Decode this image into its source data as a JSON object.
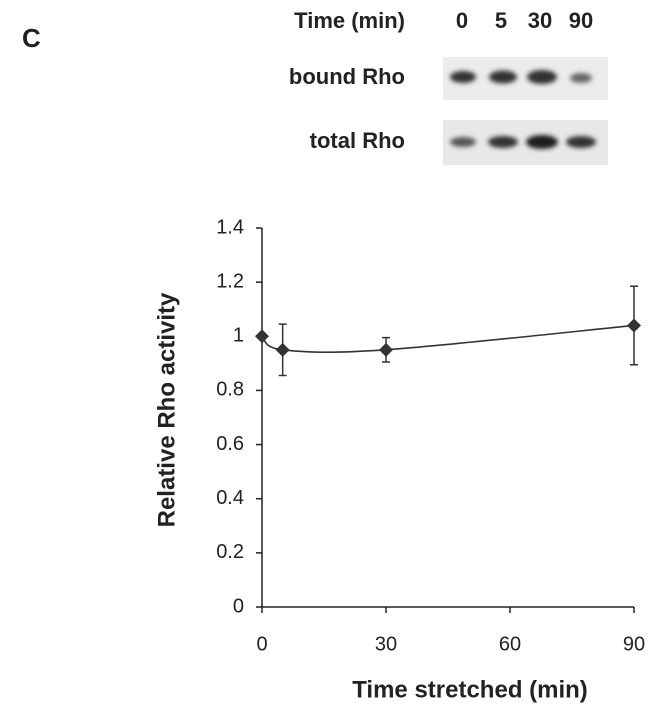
{
  "panel_label": "C",
  "blot": {
    "header": "Time (min)",
    "lanes": [
      "0",
      "5",
      "30",
      "90"
    ],
    "rows": [
      "bound Rho",
      "total Rho"
    ]
  },
  "chart_data": {
    "type": "line",
    "x": [
      0,
      5,
      30,
      90
    ],
    "values": [
      1,
      0.95,
      0.95,
      1.04
    ],
    "errors": [
      null,
      0.095,
      0.045,
      0.145
    ],
    "color": "#333333",
    "xlim": [
      0,
      90
    ],
    "xticks": [
      0,
      30,
      60,
      90
    ],
    "ylim": [
      0,
      1.4
    ],
    "yticks": [
      0,
      0.2,
      0.4,
      0.6,
      0.8,
      1,
      1.2,
      1.4
    ],
    "x_label": "Time stretched (min)",
    "y_label": "Relative Rho activity"
  }
}
